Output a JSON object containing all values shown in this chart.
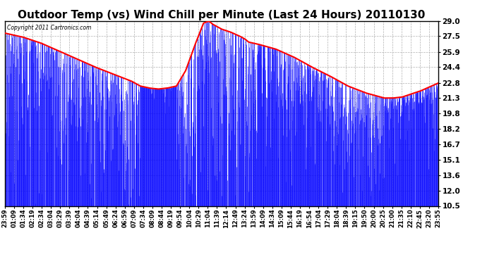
{
  "title": "Outdoor Temp (vs) Wind Chill per Minute (Last 24 Hours) 20110130",
  "copyright_text": "Copyright 2011 Cartronics.com",
  "yticks": [
    10.5,
    12.0,
    13.6,
    15.1,
    16.7,
    18.2,
    19.8,
    21.3,
    22.8,
    24.4,
    25.9,
    27.5,
    29.0
  ],
  "ymin": 10.5,
  "ymax": 29.0,
  "background_color": "#ffffff",
  "plot_bg_color": "#ffffff",
  "grid_color": "#b0b0b0",
  "blue_color": "#0000ff",
  "red_color": "#ff0000",
  "title_fontsize": 11,
  "tick_fontsize": 7.5,
  "n_points": 1440,
  "red_ctrl_t": [
    0,
    0.5,
    1,
    2,
    3,
    4,
    5,
    6,
    7,
    7.5,
    8,
    8.5,
    9,
    9.5,
    10,
    10.5,
    11,
    11.3,
    11.5,
    12,
    12.5,
    13,
    13.3,
    13.5,
    14,
    15,
    16,
    17,
    18,
    19,
    20,
    21,
    21.5,
    22,
    22.5,
    23,
    23.5,
    24
  ],
  "red_ctrl_v": [
    27.8,
    27.6,
    27.4,
    26.8,
    26.0,
    25.2,
    24.4,
    23.7,
    23.0,
    22.5,
    22.3,
    22.2,
    22.3,
    22.5,
    24.0,
    26.5,
    28.8,
    29.0,
    28.7,
    28.2,
    27.9,
    27.5,
    27.2,
    26.9,
    26.7,
    26.2,
    25.4,
    24.4,
    23.5,
    22.5,
    21.8,
    21.3,
    21.3,
    21.4,
    21.7,
    22.0,
    22.4,
    22.8
  ],
  "x_labels": [
    "23:59",
    "01:09",
    "01:34",
    "02:19",
    "02:34",
    "03:04",
    "03:29",
    "03:39",
    "04:04",
    "04:39",
    "05:14",
    "05:49",
    "06:24",
    "06:59",
    "07:09",
    "07:34",
    "08:09",
    "08:44",
    "09:19",
    "09:54",
    "10:04",
    "10:29",
    "11:04",
    "11:39",
    "12:14",
    "12:49",
    "13:24",
    "13:59",
    "14:09",
    "14:34",
    "15:09",
    "15:44",
    "16:19",
    "16:54",
    "17:04",
    "17:29",
    "18:04",
    "18:39",
    "19:15",
    "19:50",
    "20:00",
    "20:25",
    "21:00",
    "21:35",
    "22:10",
    "22:45",
    "23:20",
    "23:55"
  ]
}
